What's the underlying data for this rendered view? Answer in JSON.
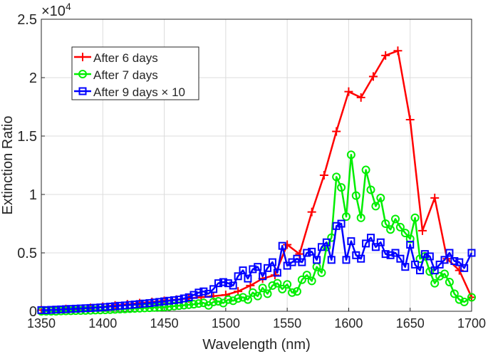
{
  "chart_data": {
    "type": "line",
    "title": "",
    "xlabel": "Wavelength (nm)",
    "ylabel": "Extinction Ratio",
    "y_exponent_label": "×10",
    "y_exponent_power": "4",
    "xlim": [
      1350,
      1700
    ],
    "ylim": [
      0,
      2.5
    ],
    "xticks": [
      1350,
      1400,
      1450,
      1500,
      1550,
      1600,
      1650,
      1700
    ],
    "yticks": [
      0,
      0.5,
      1,
      1.5,
      2,
      2.5
    ],
    "ytick_labels": [
      "0",
      "0.5",
      "1",
      "1.5",
      "2",
      "2.5"
    ],
    "grid": true,
    "legend_placement": "top-left",
    "series": [
      {
        "name": "After 6 days",
        "color": "#ff0000",
        "marker": "plus",
        "x": [
          1350,
          1360,
          1370,
          1380,
          1390,
          1400,
          1410,
          1420,
          1430,
          1440,
          1450,
          1460,
          1470,
          1480,
          1490,
          1500,
          1510,
          1520,
          1530,
          1540,
          1550,
          1560,
          1570,
          1580,
          1590,
          1600,
          1610,
          1620,
          1630,
          1640,
          1650,
          1660,
          1670,
          1680,
          1690,
          1700
        ],
        "values": [
          0.01,
          0.01,
          0.02,
          0.02,
          0.03,
          0.04,
          0.05,
          0.06,
          0.07,
          0.08,
          0.09,
          0.1,
          0.11,
          0.12,
          0.13,
          0.14,
          0.17,
          0.22,
          0.28,
          0.31,
          0.57,
          0.49,
          0.85,
          1.165,
          1.54,
          1.88,
          1.83,
          2.01,
          2.19,
          2.23,
          1.64,
          0.69,
          0.97,
          0.45,
          0.35,
          0.12
        ]
      },
      {
        "name": "After 7 days",
        "color": "#00ee00",
        "marker": "circle",
        "x": [
          1350,
          1354,
          1358,
          1362,
          1366,
          1370,
          1374,
          1378,
          1382,
          1386,
          1390,
          1394,
          1398,
          1402,
          1406,
          1410,
          1414,
          1418,
          1422,
          1426,
          1430,
          1434,
          1438,
          1442,
          1446,
          1450,
          1454,
          1458,
          1462,
          1466,
          1470,
          1474,
          1478,
          1482,
          1486,
          1490,
          1494,
          1498,
          1502,
          1506,
          1510,
          1514,
          1518,
          1522,
          1526,
          1530,
          1534,
          1538,
          1542,
          1546,
          1550,
          1554,
          1558,
          1562,
          1566,
          1570,
          1574,
          1578,
          1582,
          1586,
          1590,
          1594,
          1598,
          1602,
          1606,
          1610,
          1614,
          1618,
          1622,
          1626,
          1630,
          1634,
          1638,
          1642,
          1646,
          1650,
          1654,
          1658,
          1662,
          1666,
          1670,
          1674,
          1678,
          1682,
          1686,
          1690,
          1694,
          1700
        ],
        "values": [
          0,
          0,
          0,
          0,
          0.002,
          0.003,
          0.004,
          0.005,
          0.006,
          0.007,
          0.008,
          0.01,
          0.011,
          0.012,
          0.014,
          0.016,
          0.018,
          0.02,
          0.022,
          0.024,
          0.026,
          0.028,
          0.03,
          0.032,
          0.034,
          0.036,
          0.04,
          0.044,
          0.048,
          0.052,
          0.056,
          0.06,
          0.066,
          0.072,
          0.05,
          0.08,
          0.085,
          0.07,
          0.1,
          0.09,
          0.11,
          0.12,
          0.1,
          0.16,
          0.13,
          0.2,
          0.15,
          0.22,
          0.24,
          0.19,
          0.23,
          0.16,
          0.17,
          0.27,
          0.31,
          0.26,
          0.38,
          0.33,
          0.55,
          0.63,
          1.15,
          1.06,
          0.81,
          1.34,
          0.99,
          0.8,
          1.21,
          1.04,
          0.9,
          0.97,
          0.75,
          0.7,
          0.79,
          0.72,
          0.67,
          0.62,
          0.8,
          0.45,
          0.47,
          0.34,
          0.24,
          0.3,
          0.32,
          0.25,
          0.15,
          0.1,
          0.08,
          0.12
        ]
      },
      {
        "name": "After 9 days × 10",
        "color": "#0000ff",
        "marker": "square",
        "x": [
          1350,
          1354,
          1358,
          1362,
          1366,
          1370,
          1374,
          1378,
          1382,
          1386,
          1390,
          1394,
          1398,
          1402,
          1406,
          1410,
          1414,
          1418,
          1422,
          1426,
          1430,
          1434,
          1438,
          1442,
          1446,
          1450,
          1454,
          1458,
          1462,
          1466,
          1470,
          1474,
          1478,
          1482,
          1486,
          1490,
          1494,
          1498,
          1502,
          1506,
          1510,
          1514,
          1518,
          1522,
          1526,
          1530,
          1534,
          1538,
          1542,
          1546,
          1550,
          1554,
          1558,
          1562,
          1566,
          1570,
          1574,
          1578,
          1582,
          1586,
          1590,
          1594,
          1598,
          1602,
          1606,
          1610,
          1614,
          1618,
          1622,
          1626,
          1630,
          1634,
          1638,
          1642,
          1646,
          1650,
          1654,
          1658,
          1662,
          1666,
          1670,
          1674,
          1678,
          1682,
          1686,
          1690,
          1694,
          1700
        ],
        "values": [
          0.01,
          0.01,
          0.012,
          0.014,
          0.016,
          0.018,
          0.02,
          0.022,
          0.024,
          0.026,
          0.028,
          0.03,
          0.033,
          0.036,
          0.04,
          0.043,
          0.047,
          0.05,
          0.054,
          0.058,
          0.062,
          0.066,
          0.07,
          0.075,
          0.08,
          0.085,
          0.09,
          0.095,
          0.1,
          0.11,
          0.12,
          0.14,
          0.16,
          0.17,
          0.15,
          0.19,
          0.24,
          0.25,
          0.24,
          0.22,
          0.3,
          0.35,
          0.28,
          0.36,
          0.38,
          0.3,
          0.37,
          0.42,
          0.33,
          0.56,
          0.39,
          0.42,
          0.45,
          0.42,
          0.5,
          0.51,
          0.44,
          0.55,
          0.59,
          0.44,
          0.73,
          0.75,
          0.44,
          0.6,
          0.48,
          0.45,
          0.58,
          0.63,
          0.55,
          0.59,
          0.49,
          0.48,
          0.5,
          0.45,
          0.38,
          0.57,
          0.4,
          0.35,
          0.49,
          0.47,
          0.35,
          0.4,
          0.44,
          0.5,
          0.43,
          0.42,
          0.37,
          0.5
        ]
      }
    ]
  }
}
